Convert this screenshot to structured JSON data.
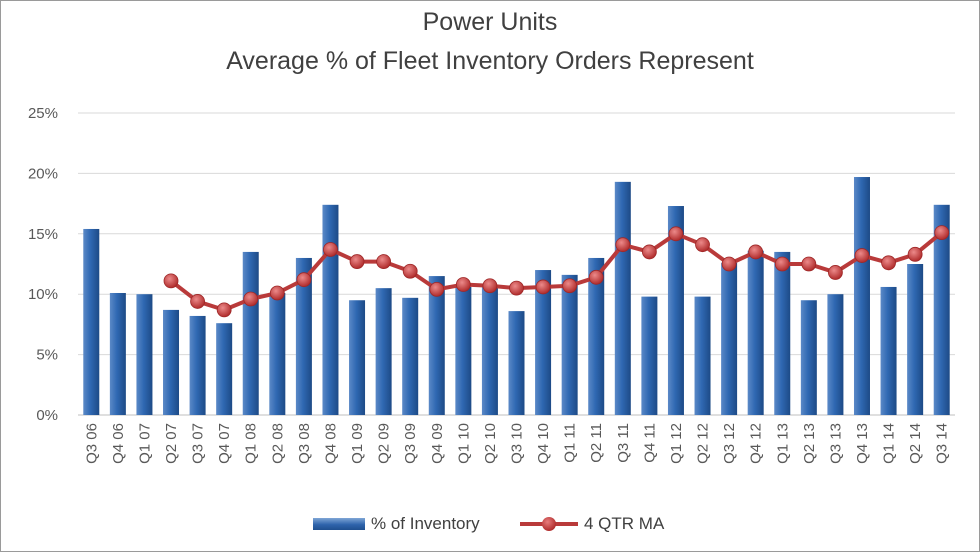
{
  "chart_data": {
    "type": "bar",
    "title": "Power Units",
    "subtitle": "Average % of Fleet Inventory Orders Represent",
    "categories": [
      "Q3 06",
      "Q4 06",
      "Q1 07",
      "Q2 07",
      "Q3 07",
      "Q4 07",
      "Q1 08",
      "Q2 08",
      "Q3 08",
      "Q4 08",
      "Q1 09",
      "Q2 09",
      "Q3 09",
      "Q4 09",
      "Q1 10",
      "Q2 10",
      "Q3 10",
      "Q4 10",
      "Q1 11",
      "Q2 11",
      "Q3 11",
      "Q4 11",
      "Q1 12",
      "Q2 12",
      "Q3 12",
      "Q4 12",
      "Q1 13",
      "Q2 13",
      "Q3 13",
      "Q4 13",
      "Q1 14",
      "Q2 14",
      "Q3 14"
    ],
    "series": [
      {
        "name": "% of Inventory",
        "type": "bar",
        "values": [
          15.4,
          10.1,
          10.0,
          8.7,
          8.2,
          7.6,
          13.5,
          10.1,
          13.0,
          17.4,
          9.5,
          10.5,
          9.7,
          11.5,
          10.6,
          10.6,
          8.6,
          12.0,
          11.6,
          13.0,
          19.3,
          9.8,
          17.3,
          9.8,
          12.6,
          13.6,
          13.5,
          9.5,
          10.0,
          19.7,
          10.6,
          12.5,
          17.4
        ]
      },
      {
        "name": "4 QTR MA",
        "type": "line",
        "values": [
          null,
          null,
          null,
          11.1,
          9.4,
          8.7,
          9.6,
          10.1,
          11.2,
          13.7,
          12.7,
          12.7,
          11.9,
          10.4,
          10.8,
          10.7,
          10.5,
          10.6,
          10.7,
          11.4,
          14.1,
          13.5,
          15.0,
          14.1,
          12.5,
          13.5,
          12.5,
          12.5,
          11.8,
          13.2,
          12.6,
          13.3,
          15.1
        ]
      }
    ],
    "xlabel": "",
    "ylabel": "",
    "ylim": [
      0,
      25
    ],
    "yticks": [
      "0%",
      "5%",
      "10%",
      "15%",
      "20%",
      "25%"
    ],
    "legend_position": "bottom",
    "grid": true
  },
  "colors": {
    "bar": "#2e64ac",
    "line": "#b93a3a",
    "grid": "#d9d9d9"
  }
}
